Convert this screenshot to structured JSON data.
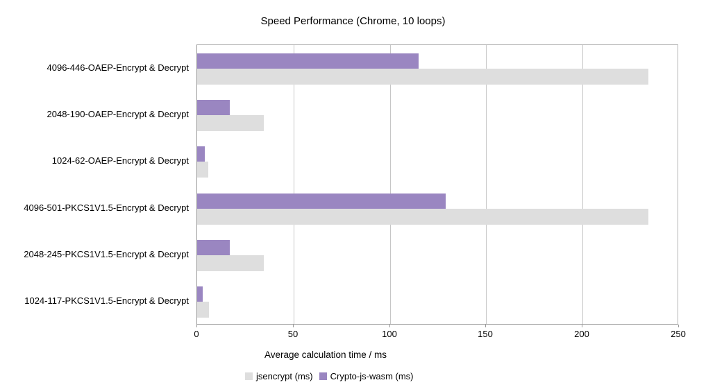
{
  "title": "Speed Performance (Chrome, 10 loops)",
  "chart_data": {
    "type": "bar",
    "orientation": "horizontal",
    "title": "Speed Performance (Chrome, 10 loops)",
    "categories": [
      "4096-446-OAEP-Encrypt & Decrypt",
      "2048-190-OAEP-Encrypt & Decrypt",
      "1024-62-OAEP-Encrypt & Decrypt",
      "4096-501-PKCS1V1.5-Encrypt & Decrypt",
      "2048-245-PKCS1V1.5-Encrypt & Decrypt",
      "1024-117-PKCS1V1.5-Encrypt & Decrypt"
    ],
    "series": [
      {
        "name": "jsencrypt (ms)",
        "color": "#dedede",
        "values": [
          234,
          34.5,
          5.7,
          234,
          34.5,
          6
        ]
      },
      {
        "name": "Crypto-js-wasm (ms)",
        "color": "#9a86c1",
        "values": [
          115,
          17,
          4,
          129,
          17,
          3
        ]
      }
    ],
    "xlabel": "Average calculation time / ms",
    "ylabel": "",
    "xlim": [
      0,
      250
    ],
    "xticks": [
      0,
      50,
      100,
      150,
      200,
      250
    ],
    "grid": "vertical-only",
    "legend_position": "bottom",
    "colors": {
      "background": "#ffffff",
      "gridline": "#c6c6c6",
      "plot_border": "#b3b3b3",
      "axis_line": "#999999",
      "text": "#000000"
    }
  }
}
